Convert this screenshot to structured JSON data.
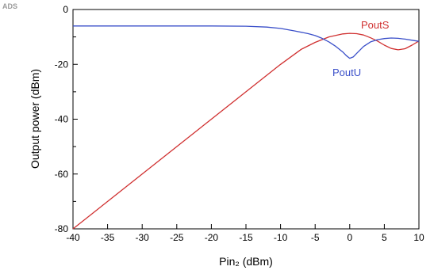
{
  "tool_label": "ADS",
  "chart_data": {
    "type": "line",
    "title": "",
    "xlabel": "Pin₂ (dBm)",
    "ylabel": "Output power (dBm)",
    "xlim": [
      -40,
      10
    ],
    "ylim": [
      -80,
      0
    ],
    "xticks": [
      -40,
      -35,
      -30,
      -25,
      -20,
      -15,
      -10,
      -5,
      0,
      5,
      10
    ],
    "yticks": [
      0,
      -20,
      -40,
      -60,
      -80
    ],
    "grid": false,
    "colors": {
      "PoutS": "#d03030",
      "PoutU": "#3a4fc9"
    },
    "series": [
      {
        "name": "PoutS",
        "x": [
          -40,
          -35,
          -30,
          -25,
          -20,
          -15,
          -10,
          -7,
          -5,
          -3,
          -1,
          0,
          1,
          2,
          3,
          4,
          5,
          6,
          7,
          8,
          9,
          10
        ],
        "y": [
          -80,
          -70,
          -60,
          -50,
          -40,
          -30,
          -20,
          -14.5,
          -12,
          -10,
          -8.9,
          -8.7,
          -8.8,
          -9.3,
          -10.3,
          -11.5,
          -13,
          -14.2,
          -14.7,
          -14.3,
          -13,
          -11.5
        ]
      },
      {
        "name": "PoutU",
        "x": [
          -40,
          -30,
          -20,
          -15,
          -12,
          -10,
          -8,
          -6,
          -5,
          -4,
          -3,
          -2,
          -1,
          -0.5,
          0,
          0.5,
          1,
          2,
          3,
          4,
          5,
          6,
          7,
          8,
          9,
          10
        ],
        "y": [
          -6,
          -6,
          -6,
          -6.1,
          -6.4,
          -6.9,
          -7.8,
          -8.8,
          -9.5,
          -10.5,
          -11.8,
          -13.5,
          -15.5,
          -16.8,
          -17.8,
          -17.3,
          -16,
          -13.5,
          -11.8,
          -11,
          -10.6,
          -10.4,
          -10.5,
          -10.8,
          -11.2,
          -11.6
        ]
      }
    ]
  }
}
